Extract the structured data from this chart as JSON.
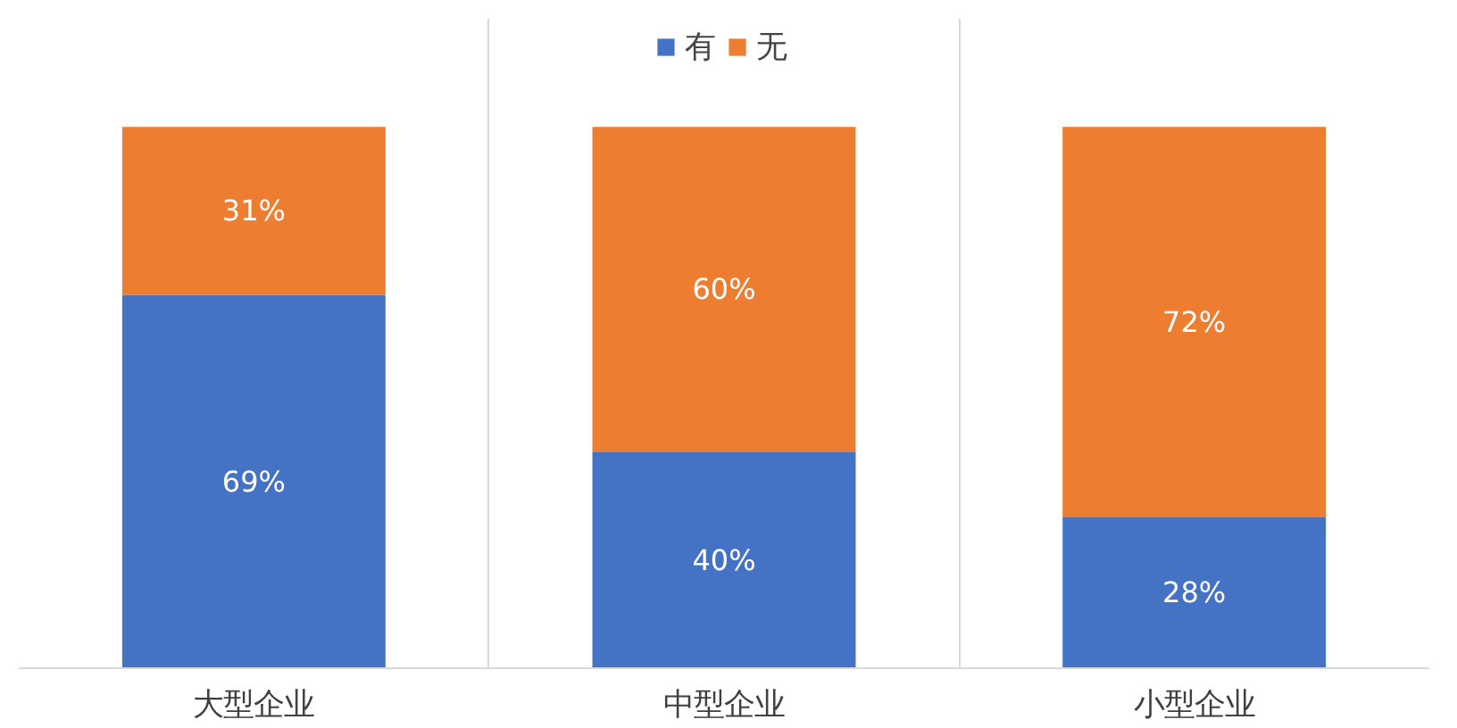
{
  "chart_data": {
    "type": "bar",
    "stacked": true,
    "categories": [
      "大型企业",
      "中型企业",
      "小型企业"
    ],
    "series": [
      {
        "name": "有",
        "color": "#4472c4",
        "values": [
          69,
          40,
          28
        ],
        "value_labels": [
          "69%",
          "40%",
          "28%"
        ]
      },
      {
        "name": "无",
        "color": "#ed7d31",
        "values": [
          31,
          60,
          72
        ],
        "value_labels": [
          "31%",
          "60%",
          "72%"
        ]
      }
    ],
    "grid": "x",
    "legend": "top",
    "tick_labels": "x"
  }
}
